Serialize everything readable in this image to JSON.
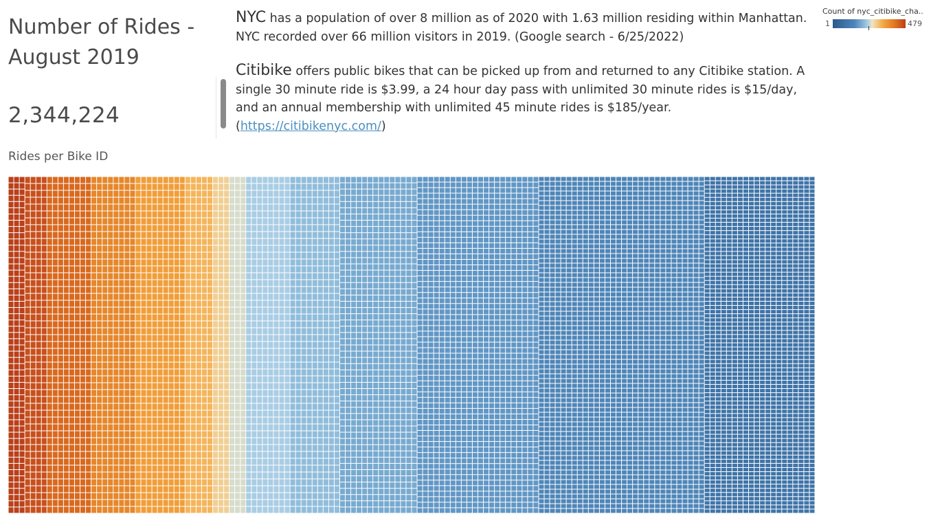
{
  "header": {
    "title": "Number of Rides - August 2019",
    "total_rides": "2,344,224",
    "subtitle": "Rides per Bike ID"
  },
  "intro": {
    "nyc_lead": "NYC",
    "nyc_text": " has a population of over 8 million as of 2020 with 1.63 million residing within Manhattan. NYC recorded over 66 million visitors in 2019. (Google search - 6/25/2022)",
    "citibike_lead": "Citibike",
    "citibike_text": " offers public bikes that can be picked up from and returned to any Citibike station. A single 30 minute ride is $3.99, a 24 hour day pass with unlimited 30 minute rides is $15/day, and an annual membership with unlimited 45 minute rides is $185/year.",
    "link_open": "(",
    "link_text": "https://citibikenyc.com/",
    "link_close": ")"
  },
  "legend": {
    "title": "Count of nyc_citibike_cha..",
    "min": "1",
    "max": "479"
  },
  "colors": {
    "scale": [
      "#b9401a",
      "#e07621",
      "#f3a53e",
      "#f1e4c2",
      "#a9cde4",
      "#4e86bb",
      "#2a5a8c"
    ],
    "cell_border": "#ffffff"
  },
  "chart_data": {
    "type": "heatmap",
    "subtype": "treemap",
    "measure": "Count of rides per Bike ID",
    "color_range": [
      1,
      479
    ],
    "layout": "columns",
    "bands": [
      {
        "columns": 3,
        "cell_height": 9,
        "color": "#b9401a"
      },
      {
        "columns": 4,
        "cell_height": 10,
        "color": "#c7501c"
      },
      {
        "columns": 8,
        "cell_height": 10,
        "color": "#d86a20"
      },
      {
        "columns": 8,
        "cell_height": 10,
        "color": "#e5872b"
      },
      {
        "columns": 9,
        "cell_height": 10,
        "color": "#f09e3a"
      },
      {
        "columns": 5,
        "cell_height": 10,
        "color": "#f4b55c"
      },
      {
        "columns": 3,
        "cell_height": 10,
        "color": "#f0cf93"
      },
      {
        "columns": 3,
        "cell_height": 10,
        "color": "#d7dccb"
      },
      {
        "columns": 8,
        "cell_height": 10,
        "color": "#a9cde4"
      },
      {
        "columns": 9,
        "cell_height": 10,
        "color": "#91bddb"
      },
      {
        "columns": 14,
        "cell_height": 9,
        "color": "#78aad0"
      },
      {
        "columns": 22,
        "cell_height": 8,
        "color": "#6297c5"
      },
      {
        "columns": 30,
        "cell_height": 7,
        "color": "#4f86b8"
      },
      {
        "columns": 20,
        "cell_height": 6,
        "color": "#3f74a8"
      }
    ]
  }
}
